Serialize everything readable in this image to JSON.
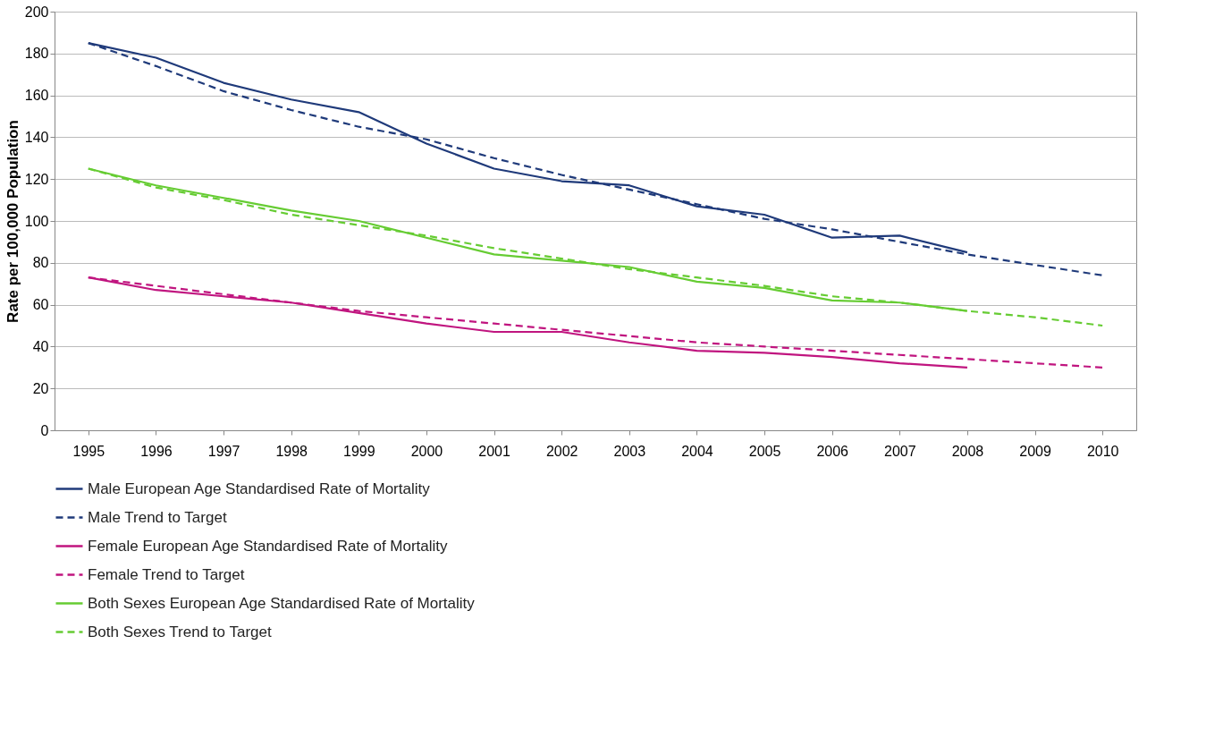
{
  "chart_data": {
    "type": "line",
    "ylabel": "Rate per 100,000 Population",
    "categories": [
      "1995",
      "1996",
      "1997",
      "1998",
      "1999",
      "2000",
      "2001",
      "2002",
      "2003",
      "2004",
      "2005",
      "2006",
      "2007",
      "2008",
      "2009",
      "2010"
    ],
    "ylim": [
      0,
      200
    ],
    "yticks": [
      0,
      20,
      40,
      60,
      80,
      100,
      120,
      140,
      160,
      180,
      200
    ],
    "grid": "y",
    "legend": "bottom",
    "marker": "none",
    "series": [
      {
        "name": "Male European Age Standardised Rate of Mortality",
        "color": "#1f3a7a",
        "line_style": "solid",
        "values": [
          185,
          178,
          166,
          158,
          152,
          137,
          125,
          119,
          117,
          107,
          103,
          92,
          93,
          85,
          null,
          null
        ]
      },
      {
        "name": "Male Trend to Target",
        "color": "#1f3a7a",
        "line_style": "dashed",
        "values": [
          185,
          174,
          162,
          153,
          145,
          139,
          130,
          122,
          115,
          108,
          101,
          96,
          90,
          84,
          79,
          74
        ]
      },
      {
        "name": "Female European Age Standardised Rate of Mortality",
        "color": "#c0157f",
        "line_style": "solid",
        "values": [
          73,
          67,
          64,
          61,
          56,
          51,
          47,
          47,
          42,
          38,
          37,
          35,
          32,
          30,
          null,
          null
        ]
      },
      {
        "name": "Female Trend to Target",
        "color": "#c0157f",
        "line_style": "dashed",
        "values": [
          73,
          69,
          65,
          61,
          57,
          54,
          51,
          48,
          45,
          42,
          40,
          38,
          36,
          34,
          32,
          30
        ]
      },
      {
        "name": "Both Sexes European Age Standardised Rate of Mortality",
        "color": "#66cc33",
        "line_style": "solid",
        "values": [
          125,
          117,
          111,
          105,
          100,
          92,
          84,
          81,
          78,
          71,
          68,
          62,
          61,
          57,
          null,
          null
        ]
      },
      {
        "name": "Both Sexes Trend to Target",
        "color": "#66cc33",
        "line_style": "dashed",
        "values": [
          125,
          116,
          110,
          103,
          98,
          93,
          87,
          82,
          77,
          73,
          69,
          64,
          61,
          57,
          54,
          50
        ]
      }
    ]
  }
}
